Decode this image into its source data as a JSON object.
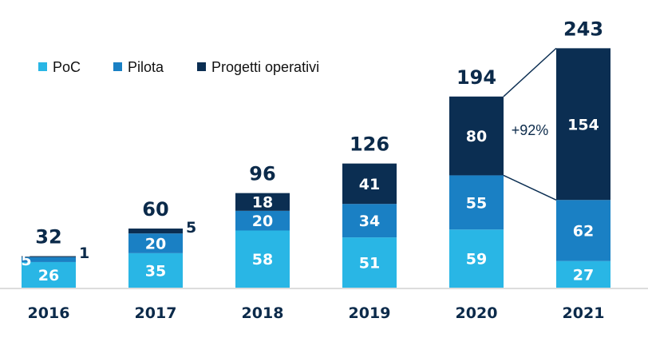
{
  "chart_data": {
    "type": "bar",
    "stacked": true,
    "title": "",
    "xlabel": "",
    "ylabel": "",
    "categories": [
      "2016",
      "2017",
      "2018",
      "2019",
      "2020",
      "2021"
    ],
    "series": [
      {
        "name": "PoC",
        "color": "#29b6e5",
        "values": [
          26,
          35,
          58,
          51,
          59,
          27
        ]
      },
      {
        "name": "Pilota",
        "color": "#1a80c4",
        "values": [
          5,
          20,
          20,
          34,
          55,
          62
        ]
      },
      {
        "name": "Progetti operativi",
        "color": "#0b2e52",
        "values": [
          1,
          5,
          18,
          41,
          80,
          154
        ]
      }
    ],
    "totals": [
      "32",
      "60",
      "96",
      "126",
      "194",
      "243"
    ],
    "segment_labels": [
      [
        "26",
        "35",
        "58",
        "51",
        "59",
        "27"
      ],
      [
        "5",
        "20",
        "20",
        "34",
        "55",
        "62"
      ],
      [
        "1",
        "5",
        "18",
        "41",
        "80",
        "154"
      ]
    ],
    "annotation": {
      "text": "+92%",
      "from": "2020",
      "to": "2021",
      "series": "Progetti operativi"
    },
    "legend_position": "top-left",
    "grid": false
  }
}
